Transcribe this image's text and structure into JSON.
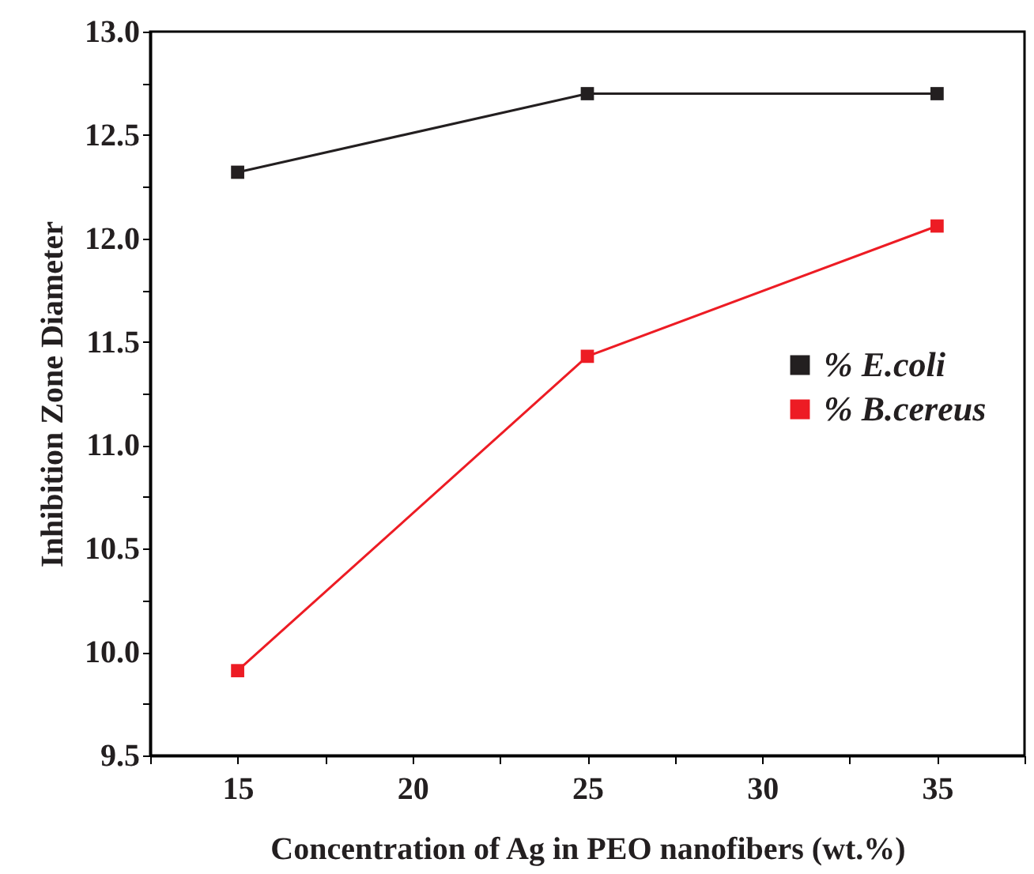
{
  "chart_data": {
    "type": "line",
    "xlabel": "Concentration of Ag in PEO nanofibers (wt.%)",
    "ylabel": "Inhibition Zone Diameter",
    "x": [
      15,
      25,
      35
    ],
    "series": [
      {
        "name": "% E.coli",
        "color": "#231f20",
        "values": [
          12.32,
          12.7,
          12.7
        ]
      },
      {
        "name": "% B.cereus",
        "color": "#ed1c24",
        "values": [
          9.91,
          11.43,
          12.06
        ]
      }
    ],
    "xlim": [
      12.5,
      37.5
    ],
    "xticks": [
      {
        "value": 12.5,
        "label": null
      },
      15,
      {
        "value": 17.5,
        "label": null
      },
      20,
      {
        "value": 22.5,
        "label": null
      },
      25,
      {
        "value": 27.5,
        "label": null
      },
      30,
      {
        "value": 32.5,
        "label": null
      },
      35,
      {
        "value": 37.5,
        "label": null
      }
    ],
    "ylim": [
      9.5,
      13
    ],
    "yticks": [
      9.5,
      {
        "value": 9.75,
        "label": null
      },
      {
        "value": 10,
        "label": "10.0"
      },
      {
        "value": 10.25,
        "label": null
      },
      10.5,
      {
        "value": 10.75,
        "label": null
      },
      {
        "value": 11,
        "label": "11.0"
      },
      {
        "value": 11.25,
        "label": null
      },
      11.5,
      {
        "value": 11.75,
        "label": null
      },
      {
        "value": 12,
        "label": "12.0"
      },
      {
        "value": 12.25,
        "label": null
      },
      12.5,
      {
        "value": 12.75,
        "label": null
      },
      {
        "value": 13,
        "label": "13.0"
      }
    ],
    "marker": "square",
    "legend": "right",
    "grid": false
  }
}
